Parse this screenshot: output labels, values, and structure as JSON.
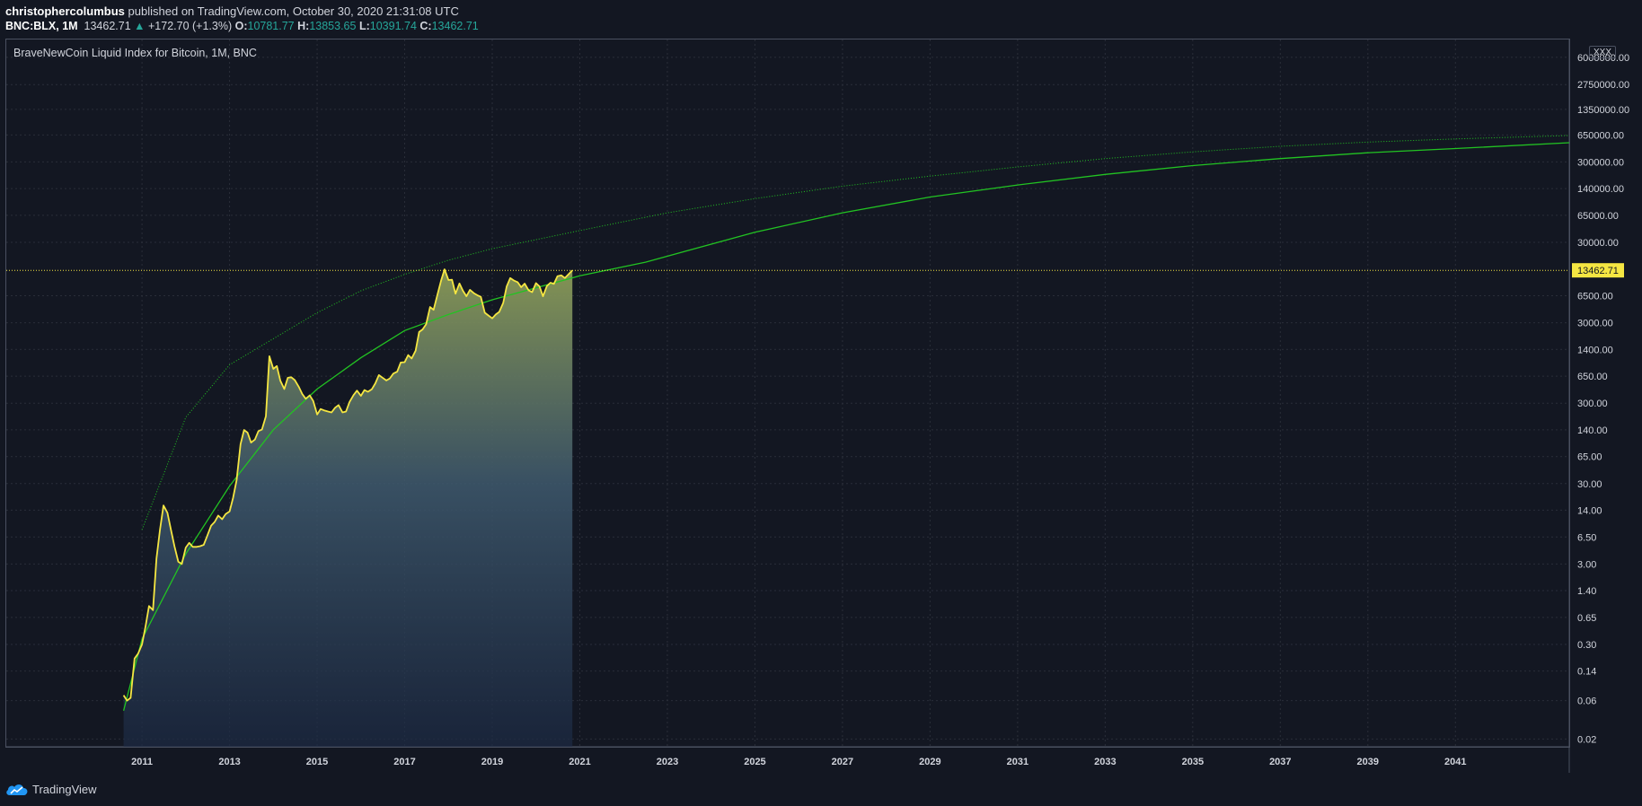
{
  "header": {
    "author": "christophercolumbus",
    "published": "published on TradingView.com, October 30, 2020 21:31:08 UTC"
  },
  "ticker": {
    "symbol": "BNC:BLX, 1M",
    "price": "13462.71",
    "change": "+172.70 (+1.3%)",
    "open_label": "O:",
    "open": "10781.77",
    "high_label": "H:",
    "high": "13853.65",
    "low_label": "L:",
    "low": "10391.74",
    "close_label": "C:",
    "close": "13462.71"
  },
  "colors": {
    "background": "#131722",
    "price_line": "#f5e642",
    "curve": "#22c322",
    "up": "#26a69a"
  },
  "scale_button": "XXX",
  "footer": {
    "brand": "TradingView"
  },
  "chart_data": {
    "type": "area",
    "title": "BraveNewCoin Liquid Index for Bitcoin, 1M, BNC",
    "y_scale": "log",
    "ylim": [
      0.016,
      10000000
    ],
    "xlim": [
      2007.9,
      2043.6
    ],
    "current_price": 13462.71,
    "current_price_label": "13462.71",
    "y_ticks": [
      "0.02",
      "0.06",
      "0.14",
      "0.30",
      "0.65",
      "1.40",
      "3.00",
      "6.50",
      "14.00",
      "30.00",
      "65.00",
      "140.00",
      "300.00",
      "650.00",
      "1400.00",
      "3000.00",
      "6500.00",
      "30000.00",
      "65000.00",
      "140000.00",
      "300000.00",
      "650000.00",
      "1350000.00",
      "2750000.00",
      "6000000.00"
    ],
    "x_ticks": [
      "2011",
      "2013",
      "2015",
      "2017",
      "2019",
      "2021",
      "2023",
      "2025",
      "2027",
      "2029",
      "2031",
      "2033",
      "2035",
      "2037",
      "2039",
      "2041"
    ],
    "series": [
      {
        "values": [
          [
            2010.58,
            0.07
          ],
          [
            2010.66,
            0.06
          ],
          [
            2010.74,
            0.065
          ],
          [
            2010.83,
            0.2
          ],
          [
            2010.91,
            0.23
          ],
          [
            2011.0,
            0.3
          ],
          [
            2011.08,
            0.5
          ],
          [
            2011.16,
            0.9
          ],
          [
            2011.25,
            0.8
          ],
          [
            2011.33,
            3.5
          ],
          [
            2011.41,
            8.0
          ],
          [
            2011.49,
            16.0
          ],
          [
            2011.58,
            13.0
          ],
          [
            2011.66,
            8.0
          ],
          [
            2011.74,
            5.0
          ],
          [
            2011.83,
            3.2
          ],
          [
            2011.91,
            3.0
          ],
          [
            2012.0,
            4.8
          ],
          [
            2012.08,
            5.5
          ],
          [
            2012.16,
            4.9
          ],
          [
            2012.25,
            4.9
          ],
          [
            2012.33,
            5.0
          ],
          [
            2012.41,
            5.2
          ],
          [
            2012.49,
            6.7
          ],
          [
            2012.58,
            9.0
          ],
          [
            2012.66,
            10.0
          ],
          [
            2012.74,
            12.0
          ],
          [
            2012.83,
            10.8
          ],
          [
            2012.91,
            12.5
          ],
          [
            2013.0,
            13.5
          ],
          [
            2013.08,
            20.0
          ],
          [
            2013.16,
            33.0
          ],
          [
            2013.25,
            93.0
          ],
          [
            2013.33,
            139.0
          ],
          [
            2013.41,
            129.0
          ],
          [
            2013.49,
            97.0
          ],
          [
            2013.58,
            106.0
          ],
          [
            2013.66,
            135.0
          ],
          [
            2013.74,
            141.0
          ],
          [
            2013.83,
            206.0
          ],
          [
            2013.91,
            1150.0
          ],
          [
            2014.0,
            800.0
          ],
          [
            2014.08,
            870.0
          ],
          [
            2014.16,
            570.0
          ],
          [
            2014.25,
            450.0
          ],
          [
            2014.33,
            620.0
          ],
          [
            2014.41,
            630.0
          ],
          [
            2014.49,
            580.0
          ],
          [
            2014.58,
            480.0
          ],
          [
            2014.66,
            390.0
          ],
          [
            2014.74,
            340.0
          ],
          [
            2014.83,
            375.0
          ],
          [
            2014.91,
            320.0
          ],
          [
            2015.0,
            217.0
          ],
          [
            2015.08,
            254.0
          ],
          [
            2015.16,
            244.0
          ],
          [
            2015.25,
            236.0
          ],
          [
            2015.33,
            230.0
          ],
          [
            2015.41,
            263.0
          ],
          [
            2015.49,
            284.0
          ],
          [
            2015.58,
            230.0
          ],
          [
            2015.66,
            236.0
          ],
          [
            2015.74,
            310.0
          ],
          [
            2015.83,
            377.0
          ],
          [
            2015.91,
            430.0
          ],
          [
            2016.0,
            370.0
          ],
          [
            2016.08,
            436.0
          ],
          [
            2016.16,
            416.0
          ],
          [
            2016.25,
            448.0
          ],
          [
            2016.33,
            531.0
          ],
          [
            2016.41,
            670.0
          ],
          [
            2016.49,
            624.0
          ],
          [
            2016.58,
            575.0
          ],
          [
            2016.66,
            609.0
          ],
          [
            2016.74,
            700.0
          ],
          [
            2016.83,
            740.0
          ],
          [
            2016.91,
            960.0
          ],
          [
            2017.0,
            970.0
          ],
          [
            2017.08,
            1190.0
          ],
          [
            2017.16,
            1080.0
          ],
          [
            2017.25,
            1350.0
          ],
          [
            2017.33,
            2300.0
          ],
          [
            2017.41,
            2480.0
          ],
          [
            2017.49,
            2875.0
          ],
          [
            2017.58,
            4700.0
          ],
          [
            2017.66,
            4340.0
          ],
          [
            2017.74,
            6450.0
          ],
          [
            2017.83,
            10000.0
          ],
          [
            2017.91,
            13850.0
          ],
          [
            2018.0,
            10200.0
          ],
          [
            2018.08,
            10300.0
          ],
          [
            2018.16,
            6900.0
          ],
          [
            2018.25,
            9250.0
          ],
          [
            2018.33,
            7500.0
          ],
          [
            2018.41,
            6400.0
          ],
          [
            2018.49,
            7700.0
          ],
          [
            2018.58,
            7000.0
          ],
          [
            2018.66,
            6600.0
          ],
          [
            2018.74,
            6300.0
          ],
          [
            2018.83,
            4000.0
          ],
          [
            2018.91,
            3700.0
          ],
          [
            2019.0,
            3400.0
          ],
          [
            2019.08,
            3800.0
          ],
          [
            2019.16,
            4100.0
          ],
          [
            2019.25,
            5300.0
          ],
          [
            2019.33,
            8500.0
          ],
          [
            2019.41,
            10800.0
          ],
          [
            2019.49,
            10100.0
          ],
          [
            2019.58,
            9600.0
          ],
          [
            2019.66,
            8300.0
          ],
          [
            2019.74,
            9200.0
          ],
          [
            2019.83,
            7600.0
          ],
          [
            2019.91,
            7200.0
          ],
          [
            2020.0,
            9350.0
          ],
          [
            2020.08,
            8500.0
          ],
          [
            2020.16,
            6400.0
          ],
          [
            2020.25,
            8600.0
          ],
          [
            2020.33,
            9450.0
          ],
          [
            2020.41,
            9130.0
          ],
          [
            2020.49,
            11350.0
          ],
          [
            2020.58,
            11650.0
          ],
          [
            2020.66,
            10780.0
          ],
          [
            2020.83,
            13462.71
          ]
        ]
      }
    ],
    "curves": [
      {
        "style": "solid",
        "points": [
          [
            2010.58,
            0.045
          ],
          [
            2011,
            0.35
          ],
          [
            2012,
            4
          ],
          [
            2013,
            28
          ],
          [
            2014,
            140
          ],
          [
            2015,
            450
          ],
          [
            2016,
            1100
          ],
          [
            2017,
            2400
          ],
          [
            2018,
            3800
          ],
          [
            2019,
            5800
          ],
          [
            2021,
            11500
          ],
          [
            2022.5,
            17000
          ],
          [
            2025,
            40000
          ],
          [
            2027,
            70000
          ],
          [
            2029,
            110000
          ],
          [
            2031,
            155000
          ],
          [
            2033,
            210000
          ],
          [
            2035,
            270000
          ],
          [
            2037,
            330000
          ],
          [
            2039,
            390000
          ],
          [
            2041,
            440000
          ],
          [
            2043.6,
            520000
          ]
        ]
      },
      {
        "style": "dotted",
        "points": [
          [
            2011,
            8
          ],
          [
            2012,
            200
          ],
          [
            2013,
            900
          ],
          [
            2014,
            1900
          ],
          [
            2015,
            4000
          ],
          [
            2016,
            7500
          ],
          [
            2017,
            12000
          ],
          [
            2018,
            18000
          ],
          [
            2019,
            25000
          ],
          [
            2021,
            42000
          ],
          [
            2023,
            70000
          ],
          [
            2025,
            105000
          ],
          [
            2027,
            150000
          ],
          [
            2029,
            200000
          ],
          [
            2031,
            260000
          ],
          [
            2033,
            330000
          ],
          [
            2035,
            400000
          ],
          [
            2037,
            470000
          ],
          [
            2039,
            530000
          ],
          [
            2041,
            580000
          ],
          [
            2043.6,
            640000
          ]
        ]
      }
    ]
  }
}
